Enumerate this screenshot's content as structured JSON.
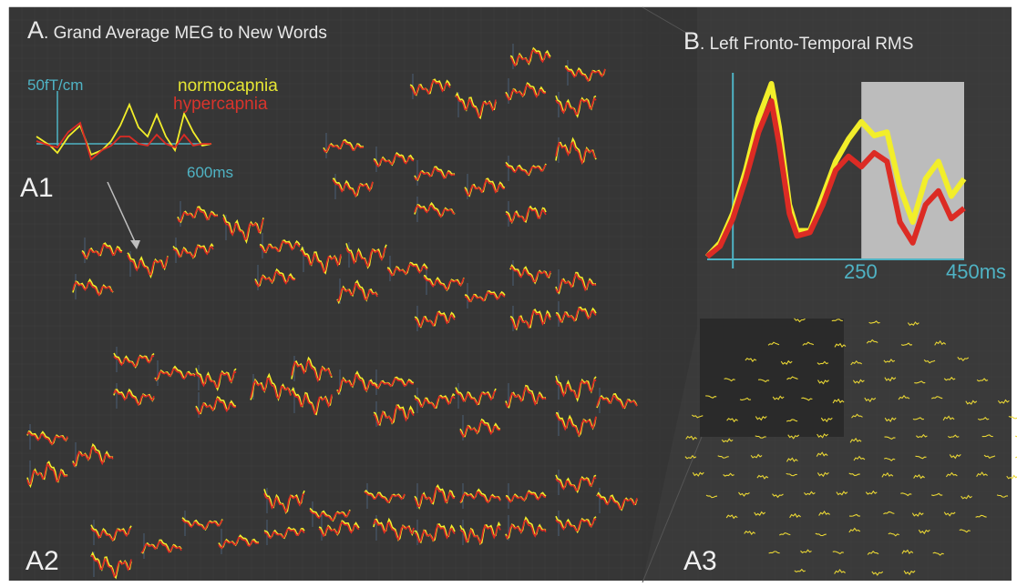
{
  "panel_a": {
    "letter": "A",
    "title": ". Grand Average MEG to New Words",
    "a1": "A1",
    "a2": "A2",
    "scale_y": "50fT/cm",
    "scale_x": "600ms"
  },
  "panel_b": {
    "letter": "B",
    "title": ". Left Fronto-Temporal RMS",
    "tick_250": "250",
    "tick_450": "450ms"
  },
  "panel_a3": {
    "label": "A3"
  },
  "legend": {
    "normocapnia": "normocapnia",
    "hypercapnia": "hypercapnia"
  },
  "colors": {
    "normocapnia": "#f2ee2a",
    "hypercapnia": "#dc2b24",
    "axis": "#4fb3c4",
    "background": "#333333",
    "window": "#bcbcbc"
  },
  "chart_data": [
    {
      "type": "line",
      "panel": "B",
      "xlim": [
        -50,
        450
      ],
      "ticks": [
        "250",
        "450ms"
      ],
      "shaded_window": [
        250,
        450
      ],
      "x": [
        -50,
        -25,
        0,
        25,
        50,
        75,
        90,
        110,
        125,
        150,
        175,
        200,
        225,
        250,
        275,
        300,
        325,
        350,
        375,
        400,
        425,
        450
      ],
      "series": [
        {
          "name": "normocapnia",
          "values": [
            0.0,
            0.08,
            0.25,
            0.5,
            0.8,
            1.0,
            0.75,
            0.3,
            0.15,
            0.15,
            0.35,
            0.55,
            0.68,
            0.78,
            0.7,
            0.72,
            0.4,
            0.2,
            0.45,
            0.55,
            0.35,
            0.45
          ]
        },
        {
          "name": "hypercapnia",
          "values": [
            0.0,
            0.06,
            0.22,
            0.45,
            0.72,
            0.9,
            0.65,
            0.25,
            0.12,
            0.14,
            0.3,
            0.5,
            0.58,
            0.52,
            0.6,
            0.55,
            0.2,
            0.08,
            0.3,
            0.38,
            0.22,
            0.28
          ]
        }
      ]
    }
  ]
}
